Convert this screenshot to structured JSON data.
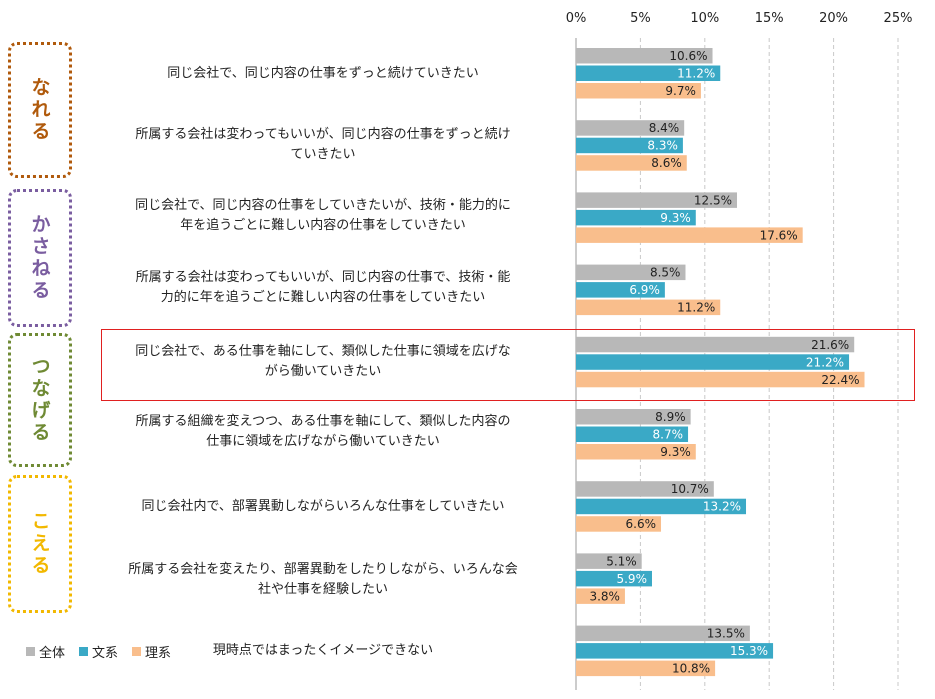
{
  "chart_data": {
    "type": "bar",
    "orientation": "horizontal",
    "categories": [
      "同じ会社で、同じ内容の仕事をずっと続けていきたい",
      "所属する会社は変わってもいいが、同じ内容の仕事をずっと続けていきたい",
      "同じ会社で、同じ内容の仕事をしていきたいが、技術・能力的に年を追うごとに難しい内容の仕事をしていきたい",
      "所属する会社は変わってもいいが、同じ内容の仕事で、技術・能力的に年を追うごとに難しい内容の仕事をしていきたい",
      "同じ会社で、ある仕事を軸にして、類似した仕事に領域を広げながら働いていきたい",
      "所属する組織を変えつつ、ある仕事を軸にして、類似した内容の仕事に領域を広げながら働いていきたい",
      "同じ会社内で、部署異動しながらいろんな仕事をしていきたい",
      "所属する会社を変えたり、部署異動をしたりしながら、いろんな会社や仕事を経験したい",
      "現時点ではまったくイメージできない"
    ],
    "label_lines": [
      [
        "同じ会社で、同じ内容の仕事をずっと続けていきたい"
      ],
      [
        "所属する会社は変わってもいいが、同じ内容の仕事をずっと続け",
        "ていきたい"
      ],
      [
        "同じ会社で、同じ内容の仕事をしていきたいが、技術・能力的に",
        "年を追うごとに難しい内容の仕事をしていきたい"
      ],
      [
        "所属する会社は変わってもいいが、同じ内容の仕事で、技術・能",
        "力的に年を追うごとに難しい内容の仕事をしていきたい"
      ],
      [
        "同じ会社で、ある仕事を軸にして、類似した仕事に領域を広げな",
        "がら働いていきたい"
      ],
      [
        "所属する組織を変えつつ、ある仕事を軸にして、類似した内容の",
        "仕事に領域を広げながら働いていきたい"
      ],
      [
        "同じ会社内で、部署異動しながらいろんな仕事をしていきたい"
      ],
      [
        "所属する会社を変えたり、部署異動をしたりしながら、いろんな会",
        "社や仕事を経験したい"
      ],
      [
        "現時点ではまったくイメージできない"
      ]
    ],
    "series": [
      {
        "name": "全体",
        "color": "#b8b8b8",
        "values": [
          10.6,
          8.4,
          12.5,
          8.5,
          21.6,
          8.9,
          10.7,
          5.1,
          13.5
        ],
        "labels": [
          "10.6%",
          "8.4%",
          "12.5%",
          "8.5%",
          "21.6%",
          "8.9%",
          "10.7%",
          "5.1%",
          "13.5%"
        ],
        "label_color": "#222222"
      },
      {
        "name": "文系",
        "color": "#3aa9c6",
        "values": [
          11.2,
          8.3,
          9.3,
          6.9,
          21.2,
          8.7,
          13.2,
          5.9,
          15.3
        ],
        "labels": [
          "11.2%",
          "8.3%",
          "9.3%",
          "6.9%",
          "21.2%",
          "8.7%",
          "13.2%",
          "5.9%",
          "15.3%"
        ],
        "label_color": "#ffffff"
      },
      {
        "name": "理系",
        "color": "#f9be8c",
        "values": [
          9.7,
          8.6,
          17.6,
          11.2,
          22.4,
          9.3,
          6.6,
          3.8,
          10.8
        ],
        "labels": [
          "9.7%",
          "8.6%",
          "17.6%",
          "11.2%",
          "22.4%",
          "9.3%",
          "6.6%",
          "3.8%",
          "10.8%"
        ],
        "label_color": "#222222"
      }
    ],
    "xlim": [
      0,
      25
    ],
    "ticks": [
      0,
      5,
      10,
      15,
      20,
      25
    ],
    "tick_labels": [
      "0%",
      "5%",
      "10%",
      "15%",
      "20%",
      "25%"
    ],
    "axis_position": "top",
    "gridlines": "dashed vertical",
    "legend_position": "bottom-left",
    "highlighted_category": 4
  },
  "groups": [
    {
      "label": "なれる",
      "color": "#b05a0c"
    },
    {
      "label": "かさねる",
      "color": "#7a5da0"
    },
    {
      "label": "つなげる",
      "color": "#6f8a34"
    },
    {
      "label": "こえる",
      "color": "#f2b800"
    }
  ],
  "highlight": {
    "color": "#e02020"
  }
}
